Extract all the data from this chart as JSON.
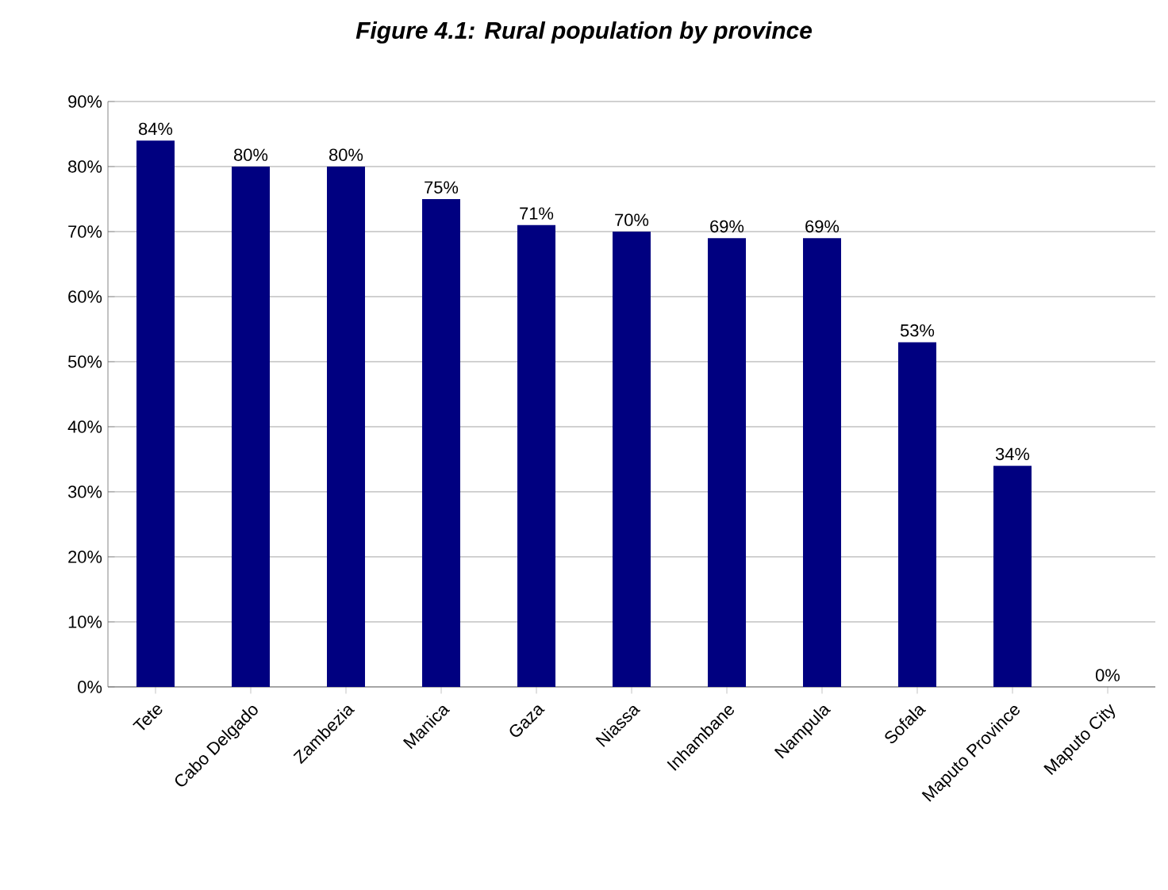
{
  "chart_data": {
    "type": "bar",
    "title": "Figure 4.1: Rural population by province",
    "categories": [
      "Tete",
      "Cabo Delgado",
      "Zambezia",
      "Manica",
      "Gaza",
      "Niassa",
      "Inhambane",
      "Nampula",
      "Sofala",
      "Maputo Province",
      "Maputo City"
    ],
    "values": [
      84,
      80,
      80,
      75,
      71,
      70,
      69,
      69,
      53,
      34,
      0
    ],
    "value_labels": [
      "84%",
      "80%",
      "80%",
      "75%",
      "71%",
      "70%",
      "69%",
      "69%",
      "53%",
      "34%",
      "0%"
    ],
    "color": "#000080",
    "ylim": [
      0,
      90
    ],
    "yticks": [
      {
        "value": 0,
        "label": "0%"
      },
      {
        "value": 10,
        "label": "10%"
      },
      {
        "value": 20,
        "label": "20%"
      },
      {
        "value": 30,
        "label": "30%"
      },
      {
        "value": 40,
        "label": "40%"
      },
      {
        "value": 50,
        "label": "50%"
      },
      {
        "value": 60,
        "label": "60%"
      },
      {
        "value": 70,
        "label": "70%"
      },
      {
        "value": 80,
        "label": "80%"
      },
      {
        "value": 90,
        "label": "90%"
      }
    ],
    "grid": "y"
  }
}
